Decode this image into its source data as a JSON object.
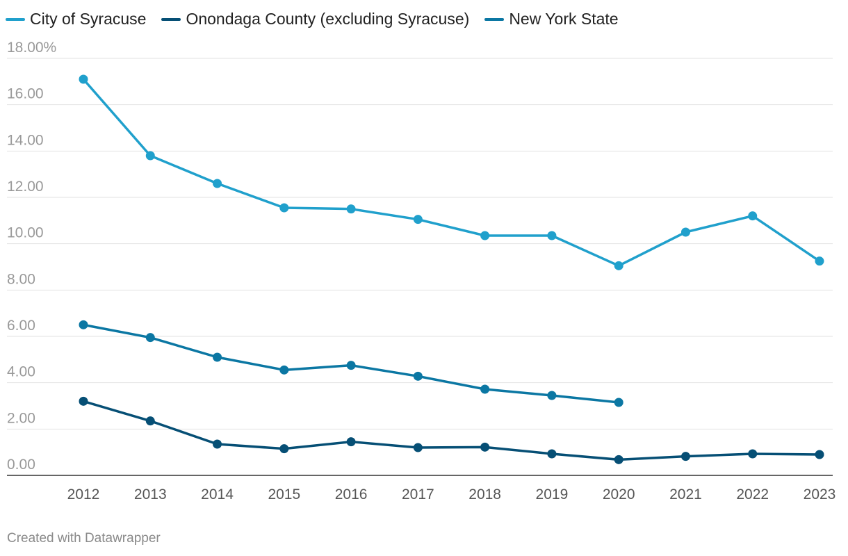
{
  "chart_data": {
    "type": "line",
    "categories": [
      "2012",
      "2013",
      "2014",
      "2015",
      "2016",
      "2017",
      "2018",
      "2019",
      "2020",
      "2021",
      "2022",
      "2023"
    ],
    "ylim": [
      0,
      18
    ],
    "yticks": [
      {
        "value": 0,
        "label": "0.00"
      },
      {
        "value": 2,
        "label": "2.00"
      },
      {
        "value": 4,
        "label": "4.00"
      },
      {
        "value": 6,
        "label": "6.00"
      },
      {
        "value": 8,
        "label": "8.00"
      },
      {
        "value": 10,
        "label": "10.00"
      },
      {
        "value": 12,
        "label": "12.00"
      },
      {
        "value": 14,
        "label": "14.00"
      },
      {
        "value": 16,
        "label": "16.00"
      },
      {
        "value": 18,
        "label": "18.00%"
      }
    ],
    "series": [
      {
        "name": "City of Syracuse",
        "color": "#20a0cc",
        "values": [
          17.1,
          13.8,
          12.6,
          11.55,
          11.5,
          11.05,
          10.35,
          10.35,
          9.05,
          10.5,
          11.2,
          9.25
        ]
      },
      {
        "name": "Onondaga County (excluding Syracuse)",
        "color": "#064f75",
        "values": [
          3.2,
          2.35,
          1.35,
          1.15,
          1.45,
          1.2,
          1.22,
          0.93,
          0.68,
          0.82,
          0.93,
          0.9
        ]
      },
      {
        "name": "New York State",
        "color": "#0b77a3",
        "values": [
          6.5,
          5.95,
          5.1,
          4.55,
          4.75,
          4.28,
          3.72,
          3.45,
          3.15,
          null,
          null,
          null
        ]
      }
    ]
  },
  "credit": "Created with Datawrapper"
}
